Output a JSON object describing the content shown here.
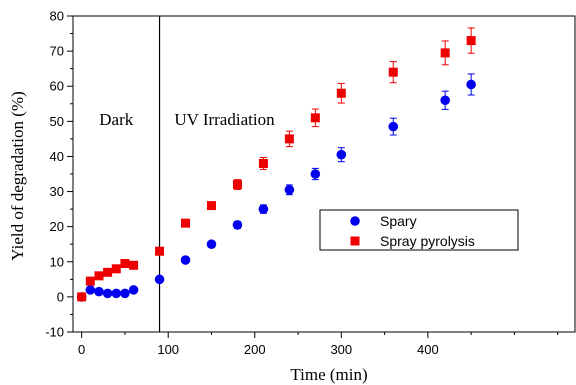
{
  "chart_data": {
    "type": "scatter",
    "xlabel": "Time (min)",
    "ylabel": "Yield of degradation (%)",
    "xlim": [
      -10,
      570
    ],
    "ylim": [
      -10,
      80
    ],
    "x_ticks": [
      0,
      100,
      200,
      300,
      400
    ],
    "y_ticks": [
      -10,
      0,
      10,
      20,
      30,
      40,
      50,
      60,
      70,
      80
    ],
    "vline_x": 90,
    "annotations": [
      {
        "text": "Dark",
        "x": 40,
        "y": 49
      },
      {
        "text": "UV Irradiation",
        "x": 165,
        "y": 49
      }
    ],
    "legend_position": "center-right",
    "series": [
      {
        "name": "Spary",
        "color": "#0000ee",
        "marker": "circle",
        "x": [
          0,
          10,
          20,
          30,
          40,
          50,
          60,
          90,
          120,
          150,
          180,
          210,
          240,
          270,
          300,
          360,
          420,
          450
        ],
        "y": [
          0,
          2,
          1.5,
          1,
          1,
          1,
          2,
          5,
          10.5,
          15,
          20.5,
          25,
          30.5,
          35,
          40.5,
          48.5,
          56,
          60.5
        ],
        "err": [
          0,
          0,
          0,
          0,
          0,
          0,
          0,
          0,
          0,
          0,
          1.0,
          1.2,
          1.4,
          1.6,
          2.0,
          2.4,
          2.6,
          3.0
        ]
      },
      {
        "name": "Spray pyrolysis",
        "color": "#ee0000",
        "marker": "square",
        "x": [
          0,
          10,
          20,
          30,
          40,
          50,
          60,
          90,
          120,
          150,
          180,
          210,
          240,
          270,
          300,
          360,
          420,
          450
        ],
        "y": [
          0,
          4.5,
          6,
          7,
          8,
          9.5,
          9,
          13,
          21,
          26,
          32,
          38,
          45,
          51,
          58,
          64,
          69.5,
          73
        ],
        "err": [
          0,
          0,
          0,
          0,
          0,
          0,
          0,
          0,
          0,
          1.0,
          1.4,
          1.7,
          2.2,
          2.5,
          2.8,
          3.0,
          3.4,
          3.6
        ]
      }
    ]
  }
}
